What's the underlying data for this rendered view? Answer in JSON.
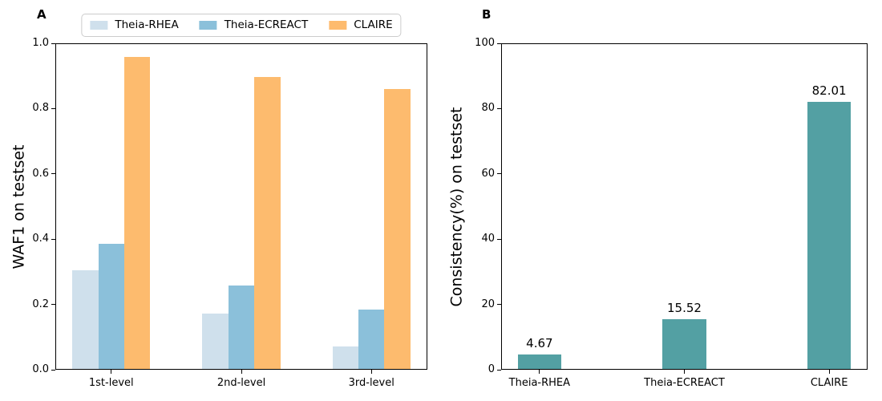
{
  "figure": {
    "background": "#ffffff"
  },
  "chart_data": [
    {
      "type": "bar",
      "panel_label": "A",
      "ylabel": "WAF1 on testset",
      "categories": [
        "1st-level",
        "2nd-level",
        "3rd-level"
      ],
      "series": [
        {
          "name": "Theia-RHEA",
          "color": "#cfe0ec",
          "values": [
            0.305,
            0.172,
            0.071
          ]
        },
        {
          "name": "Theia-ECREACT",
          "color": "#8bc0da",
          "values": [
            0.385,
            0.258,
            0.184
          ]
        },
        {
          "name": "CLAIRE",
          "color": "#fdbb6e",
          "values": [
            0.958,
            0.897,
            0.861
          ]
        }
      ],
      "ylim": [
        0,
        1.0
      ],
      "yticks": {
        "values": [
          0,
          0.2,
          0.4,
          0.6,
          0.8,
          1.0
        ],
        "labels": [
          "0.0",
          "0.2",
          "0.4",
          "0.6",
          "0.8",
          "1.0"
        ]
      },
      "xlim": [
        -0.43,
        2.43
      ],
      "bar_width_frac": 0.2,
      "grid": false,
      "legend": {
        "position": "top-center",
        "entries": [
          "Theia-RHEA",
          "Theia-ECREACT",
          "CLAIRE"
        ]
      }
    },
    {
      "type": "bar",
      "panel_label": "B",
      "ylabel": "Consistency(%) on testset",
      "categories": [
        "Theia-RHEA",
        "Theia-ECREACT",
        "CLAIRE"
      ],
      "series": [
        {
          "name": "Consistency",
          "color": "#53a0a3",
          "values": [
            4.67,
            15.52,
            82.01
          ]
        }
      ],
      "value_labels": [
        "4.67",
        "15.52",
        "82.01"
      ],
      "ylim": [
        0,
        100
      ],
      "yticks": {
        "values": [
          0,
          20,
          40,
          60,
          80,
          100
        ],
        "labels": [
          "0",
          "20",
          "40",
          "60",
          "80",
          "100"
        ]
      },
      "xlim": [
        -0.265,
        2.265
      ],
      "bar_width_frac": 0.3,
      "grid": false,
      "legend": null
    }
  ]
}
